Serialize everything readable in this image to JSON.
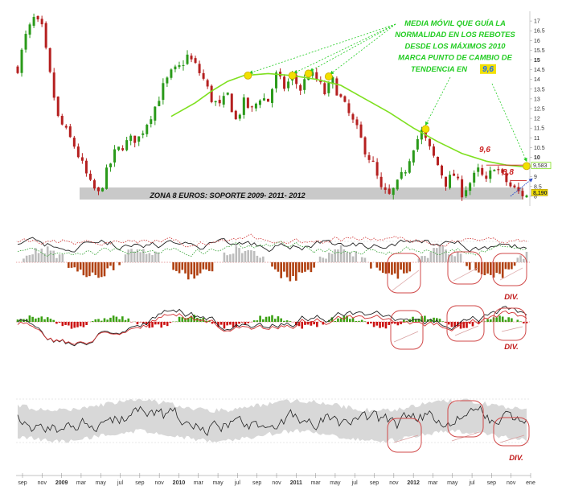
{
  "chart_data": {
    "type": "candlestick",
    "y_axis": {
      "ticks": [
        "17",
        "16.5",
        "16",
        "15.5",
        "15",
        "14.5",
        "14",
        "13.5",
        "13",
        "12.5",
        "12",
        "11.5",
        "11",
        "10.5",
        "10",
        "9.5",
        "9",
        "8.5",
        "8"
      ],
      "range": [
        7.5,
        17.5
      ]
    },
    "x_axis": {
      "labels": [
        {
          "text": "sep",
          "bold": false
        },
        {
          "text": "nov",
          "bold": false
        },
        {
          "text": "2009",
          "bold": true
        },
        {
          "text": "mar",
          "bold": false
        },
        {
          "text": "may",
          "bold": false
        },
        {
          "text": "jul",
          "bold": false
        },
        {
          "text": "sep",
          "bold": false
        },
        {
          "text": "nov",
          "bold": false
        },
        {
          "text": "2010",
          "bold": true
        },
        {
          "text": "mar",
          "bold": false
        },
        {
          "text": "may",
          "bold": false
        },
        {
          "text": "jul",
          "bold": false
        },
        {
          "text": "sep",
          "bold": false
        },
        {
          "text": "nov",
          "bold": false
        },
        {
          "text": "2011",
          "bold": true
        },
        {
          "text": "mar",
          "bold": false
        },
        {
          "text": "may",
          "bold": false
        },
        {
          "text": "jul",
          "bold": false
        },
        {
          "text": "sep",
          "bold": false
        },
        {
          "text": "nov",
          "bold": false
        },
        {
          "text": "2012",
          "bold": true
        },
        {
          "text": "mar",
          "bold": false
        },
        {
          "text": "may",
          "bold": false
        },
        {
          "text": "jul",
          "bold": false
        },
        {
          "text": "sep",
          "bold": false
        },
        {
          "text": "nov",
          "bold": false
        },
        {
          "text": "ene",
          "bold": false
        }
      ]
    },
    "price_path": [
      [
        0,
        14.6
      ],
      [
        2,
        16.2
      ],
      [
        4,
        17.1
      ],
      [
        6,
        16.6
      ],
      [
        8,
        14.2
      ],
      [
        10,
        12.0
      ],
      [
        12,
        11.3
      ],
      [
        14,
        10.6
      ],
      [
        16,
        9.6
      ],
      [
        18,
        8.6
      ],
      [
        20,
        8.1
      ],
      [
        22,
        9.2
      ],
      [
        24,
        10.2
      ],
      [
        26,
        10.6
      ],
      [
        28,
        10.9
      ],
      [
        30,
        11.0
      ],
      [
        32,
        11.8
      ],
      [
        34,
        12.6
      ],
      [
        36,
        13.6
      ],
      [
        38,
        14.3
      ],
      [
        40,
        14.6
      ],
      [
        42,
        15.2
      ],
      [
        44,
        14.7
      ],
      [
        46,
        14.0
      ],
      [
        48,
        13.0
      ],
      [
        50,
        12.6
      ],
      [
        52,
        13.2
      ],
      [
        54,
        11.9
      ],
      [
        56,
        12.8
      ],
      [
        58,
        12.4
      ],
      [
        60,
        13.1
      ],
      [
        62,
        12.9
      ],
      [
        64,
        14.2
      ],
      [
        66,
        13.6
      ],
      [
        68,
        14.1
      ],
      [
        70,
        13.5
      ],
      [
        72,
        14.3
      ],
      [
        74,
        14.0
      ],
      [
        76,
        13.3
      ],
      [
        78,
        13.9
      ],
      [
        80,
        13.0
      ],
      [
        82,
        12.2
      ],
      [
        84,
        11.4
      ],
      [
        86,
        10.4
      ],
      [
        88,
        9.6
      ],
      [
        90,
        8.3
      ],
      [
        92,
        8.0
      ],
      [
        94,
        8.6
      ],
      [
        96,
        9.4
      ],
      [
        98,
        10.6
      ],
      [
        100,
        11.3
      ],
      [
        102,
        10.4
      ],
      [
        104,
        9.6
      ],
      [
        106,
        8.7
      ],
      [
        108,
        9.1
      ],
      [
        110,
        8.2
      ],
      [
        112,
        8.7
      ],
      [
        114,
        9.3
      ],
      [
        116,
        8.7
      ],
      [
        118,
        9.6
      ],
      [
        120,
        9.0
      ],
      [
        122,
        8.5
      ],
      [
        124,
        8.2
      ],
      [
        126,
        8.0
      ]
    ],
    "moving_average": [
      [
        38,
        12.1
      ],
      [
        44,
        12.8
      ],
      [
        48,
        13.4
      ],
      [
        52,
        13.9
      ],
      [
        56,
        14.2
      ],
      [
        62,
        14.3
      ],
      [
        68,
        14.2
      ],
      [
        74,
        14.0
      ],
      [
        80,
        13.7
      ],
      [
        86,
        13.0
      ],
      [
        92,
        12.3
      ],
      [
        98,
        11.5
      ],
      [
        104,
        10.8
      ],
      [
        110,
        10.2
      ],
      [
        116,
        9.8
      ],
      [
        121,
        9.6
      ],
      [
        126,
        9.5
      ]
    ],
    "ma_markers": [
      [
        57,
        14.2
      ],
      [
        68,
        14.2
      ],
      [
        72,
        14.3
      ],
      [
        77,
        14.15
      ],
      [
        101,
        11.45
      ],
      [
        126,
        9.55
      ]
    ],
    "price_labels": {
      "current": "8,190",
      "ma": "9,583"
    },
    "annotations": {
      "note_lines": [
        "MEDIA MÓVIL QUE GUÍA LA",
        "NORMALIDAD EN LOS REBOTES",
        "DESDE LOS MÁXIMOS 2010",
        "MARCA PUNTO DE CAMBIO DE"
      ],
      "note_last_prefix": "TENDENCIA EN ",
      "note_highlight": "9,6",
      "level_labels": [
        "9,6",
        "8,8"
      ],
      "zone_label": "ZONA 8 EUROS: SOPORTE 2009- 2011- 2012",
      "div_labels": [
        "DIV.",
        "DIV.",
        "DIV."
      ]
    },
    "colors": {
      "bull": "#2a9a1a",
      "bear": "#b52020",
      "ma": "#7fe020",
      "note": "#22cc22",
      "level": "#cc2222",
      "marker": "#f2e000",
      "hist_neg": "#b04010",
      "hist_pos": "#3aa012"
    }
  }
}
